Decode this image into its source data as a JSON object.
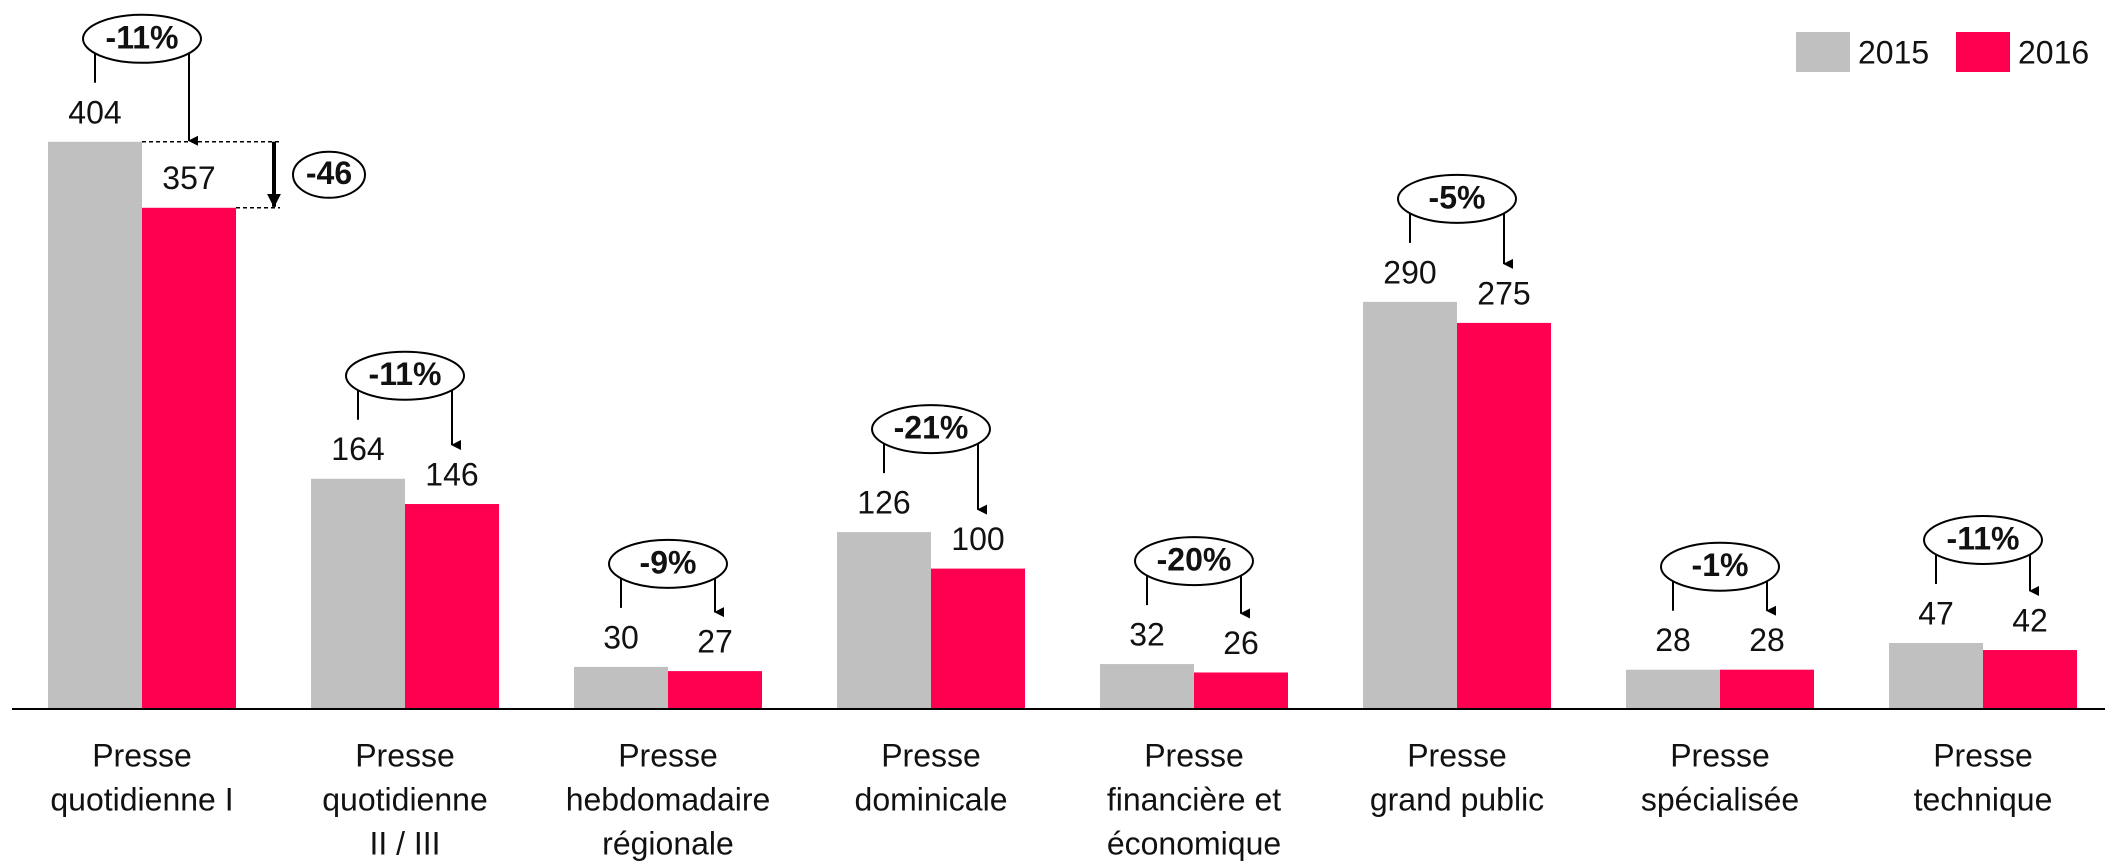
{
  "chart_data": {
    "type": "bar",
    "categories": [
      [
        "Presse",
        "quotidienne I"
      ],
      [
        "Presse",
        "quotidienne",
        "II / III"
      ],
      [
        "Presse",
        "hebdomadaire",
        "régionale"
      ],
      [
        "Presse",
        "dominicale"
      ],
      [
        "Presse",
        "financière et",
        "économique"
      ],
      [
        "Presse",
        "grand public"
      ],
      [
        "Presse",
        "spécialisée"
      ],
      [
        "Presse",
        "technique"
      ]
    ],
    "series": [
      {
        "name": "2015",
        "color": "#c0c0c0",
        "values": [
          404,
          164,
          30,
          126,
          32,
          290,
          28,
          47
        ]
      },
      {
        "name": "2016",
        "color": "#ff0050",
        "values": [
          357,
          146,
          27,
          100,
          26,
          275,
          28,
          42
        ]
      }
    ],
    "change_labels": [
      "-11%",
      "-11%",
      "-9%",
      "-21%",
      "-20%",
      "-5%",
      "-1%",
      "-11%"
    ],
    "difference_label": "-46",
    "ylim": [
      0,
      505
    ],
    "legend": "top-right"
  }
}
